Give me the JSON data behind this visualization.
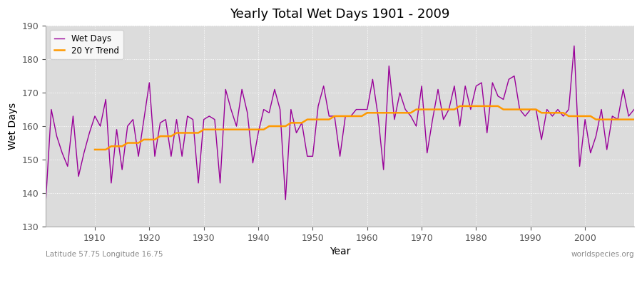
{
  "title": "Yearly Total Wet Days 1901 - 2009",
  "xlabel": "Year",
  "ylabel": "Wet Days",
  "lat_lon_label": "Latitude 57.75 Longitude 16.75",
  "source_label": "worldspecies.org",
  "ylim": [
    130,
    190
  ],
  "yticks": [
    130,
    140,
    150,
    160,
    170,
    180,
    190
  ],
  "wet_days_color": "#990099",
  "trend_color": "#ff9900",
  "bg_color": "#dcdcdc",
  "fig_bg_color": "#ffffff",
  "legend_labels": [
    "Wet Days",
    "20 Yr Trend"
  ],
  "years": [
    1901,
    1902,
    1903,
    1904,
    1905,
    1906,
    1907,
    1908,
    1909,
    1910,
    1911,
    1912,
    1913,
    1914,
    1915,
    1916,
    1917,
    1918,
    1919,
    1920,
    1921,
    1922,
    1923,
    1924,
    1925,
    1926,
    1927,
    1928,
    1929,
    1930,
    1931,
    1932,
    1933,
    1934,
    1935,
    1936,
    1937,
    1938,
    1939,
    1940,
    1941,
    1942,
    1943,
    1944,
    1945,
    1946,
    1947,
    1948,
    1949,
    1950,
    1951,
    1952,
    1953,
    1954,
    1955,
    1956,
    1957,
    1958,
    1959,
    1960,
    1961,
    1962,
    1963,
    1964,
    1965,
    1966,
    1967,
    1968,
    1969,
    1970,
    1971,
    1972,
    1973,
    1974,
    1975,
    1976,
    1977,
    1978,
    1979,
    1980,
    1981,
    1982,
    1983,
    1984,
    1985,
    1986,
    1987,
    1988,
    1989,
    1990,
    1991,
    1992,
    1993,
    1994,
    1995,
    1996,
    1997,
    1998,
    1999,
    2000,
    2001,
    2002,
    2003,
    2004,
    2005,
    2006,
    2007,
    2008,
    2009
  ],
  "wet_days": [
    138,
    165,
    157,
    152,
    148,
    163,
    145,
    152,
    158,
    163,
    160,
    168,
    143,
    159,
    147,
    160,
    162,
    151,
    162,
    173,
    151,
    161,
    162,
    151,
    162,
    151,
    163,
    162,
    143,
    162,
    163,
    162,
    143,
    171,
    165,
    160,
    171,
    164,
    149,
    158,
    165,
    164,
    171,
    165,
    138,
    165,
    158,
    161,
    151,
    151,
    166,
    172,
    163,
    163,
    151,
    163,
    163,
    165,
    165,
    165,
    174,
    163,
    147,
    178,
    162,
    170,
    165,
    163,
    160,
    172,
    152,
    162,
    171,
    162,
    165,
    172,
    160,
    172,
    165,
    172,
    173,
    158,
    173,
    169,
    168,
    174,
    175,
    165,
    163,
    165,
    165,
    156,
    165,
    163,
    165,
    163,
    165,
    184,
    148,
    162,
    152,
    157,
    165,
    153,
    163,
    162,
    171,
    163,
    165
  ],
  "trend_years": [
    1910,
    1911,
    1912,
    1913,
    1914,
    1915,
    1916,
    1917,
    1918,
    1919,
    1920,
    1921,
    1922,
    1923,
    1924,
    1925,
    1926,
    1927,
    1928,
    1929,
    1930,
    1931,
    1932,
    1933,
    1934,
    1935,
    1936,
    1937,
    1938,
    1939,
    1940,
    1941,
    1942,
    1943,
    1944,
    1945,
    1946,
    1947,
    1948,
    1949,
    1950,
    1951,
    1952,
    1953,
    1954,
    1955,
    1956,
    1957,
    1958,
    1959,
    1960,
    1961,
    1962,
    1963,
    1964,
    1965,
    1966,
    1967,
    1968,
    1969,
    1970,
    1971,
    1972,
    1973,
    1974,
    1975,
    1976,
    1977,
    1978,
    1979,
    1980,
    1981,
    1982,
    1983,
    1984,
    1985,
    1986,
    1987,
    1988,
    1989,
    1990,
    1991,
    1992,
    1993,
    1994,
    1995,
    1996,
    1997,
    1998,
    1999,
    2000,
    2001,
    2002,
    2003,
    2004,
    2005,
    2006,
    2007,
    2008,
    2009
  ],
  "trend_values": [
    153,
    153,
    153,
    154,
    154,
    154,
    155,
    155,
    155,
    156,
    156,
    156,
    157,
    157,
    157,
    158,
    158,
    158,
    158,
    158,
    159,
    159,
    159,
    159,
    159,
    159,
    159,
    159,
    159,
    159,
    159,
    159,
    160,
    160,
    160,
    160,
    161,
    161,
    161,
    162,
    162,
    162,
    162,
    162,
    163,
    163,
    163,
    163,
    163,
    163,
    164,
    164,
    164,
    164,
    164,
    164,
    164,
    164,
    164,
    165,
    165,
    165,
    165,
    165,
    165,
    165,
    165,
    166,
    166,
    166,
    166,
    166,
    166,
    166,
    166,
    165,
    165,
    165,
    165,
    165,
    165,
    165,
    164,
    164,
    164,
    164,
    164,
    163,
    163,
    163,
    163,
    163,
    162,
    162,
    162,
    162,
    162,
    162,
    162,
    162
  ]
}
